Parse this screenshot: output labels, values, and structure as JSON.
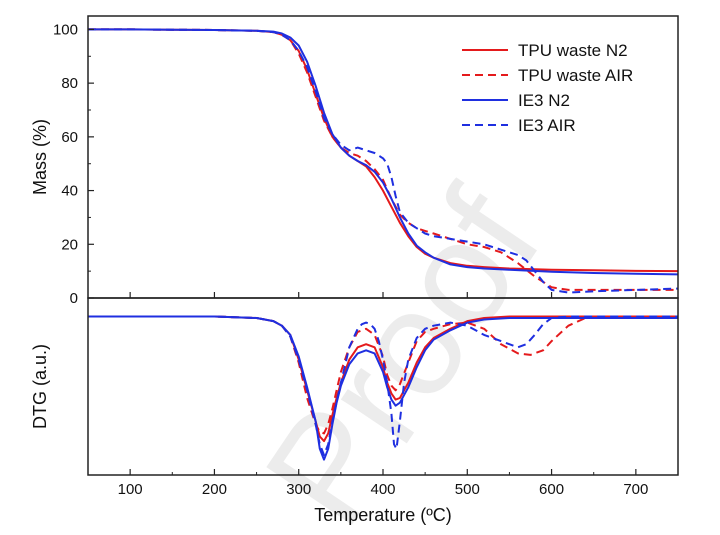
{
  "watermark": "Proof",
  "colors": {
    "tpu": "#e41a1c",
    "ie3": "#1f2fe0"
  },
  "chart_data": [
    {
      "type": "line",
      "panel": "mass",
      "ylabel": "Mass (%)",
      "xlim": [
        50,
        750
      ],
      "ylim": [
        0,
        105
      ],
      "yticks": [
        0,
        20,
        40,
        60,
        80,
        100
      ],
      "legend": "top-right",
      "series": [
        {
          "name": "TPU waste N2",
          "color": "#e41a1c",
          "dash": "solid",
          "x": [
            50,
            100,
            150,
            200,
            250,
            270,
            280,
            290,
            300,
            310,
            320,
            330,
            340,
            350,
            360,
            370,
            380,
            390,
            400,
            410,
            420,
            430,
            440,
            450,
            460,
            480,
            500,
            520,
            550,
            600,
            650,
            700,
            750
          ],
          "y": [
            100,
            100,
            99.9,
            99.8,
            99.5,
            99,
            98,
            96,
            92,
            85,
            76,
            67,
            60,
            56,
            53,
            51,
            49,
            45,
            40,
            34,
            28,
            23,
            19,
            16.5,
            15,
            13,
            12,
            11.5,
            11,
            10.5,
            10.3,
            10.1,
            10
          ]
        },
        {
          "name": "TPU waste AIR",
          "color": "#e41a1c",
          "dash": "dashed",
          "x": [
            50,
            100,
            150,
            200,
            250,
            270,
            280,
            290,
            300,
            310,
            320,
            330,
            340,
            350,
            360,
            370,
            380,
            390,
            400,
            410,
            420,
            430,
            440,
            450,
            460,
            480,
            500,
            520,
            540,
            560,
            580,
            600,
            620,
            630,
            650,
            700,
            750
          ],
          "y": [
            100,
            100,
            99.9,
            99.8,
            99.5,
            99,
            98,
            96,
            91,
            84,
            75,
            66,
            60,
            56,
            54,
            53,
            51,
            48,
            44,
            37,
            31,
            28,
            26,
            25,
            24,
            22,
            20,
            19,
            17,
            13,
            8,
            4,
            3,
            3,
            3,
            3,
            3
          ]
        },
        {
          "name": "IE3 N2",
          "color": "#1f2fe0",
          "dash": "solid",
          "x": [
            50,
            100,
            150,
            200,
            250,
            270,
            280,
            290,
            300,
            310,
            320,
            330,
            340,
            350,
            360,
            370,
            380,
            390,
            400,
            410,
            420,
            430,
            440,
            450,
            460,
            480,
            500,
            520,
            550,
            600,
            650,
            700,
            750
          ],
          "y": [
            100,
            100,
            99.9,
            99.8,
            99.5,
            99.2,
            98.5,
            97,
            94,
            88,
            79,
            69,
            61,
            56,
            53,
            51,
            49.5,
            47,
            43,
            37,
            30,
            24,
            19.5,
            17,
            15,
            12.5,
            11.5,
            11,
            10.5,
            9.8,
            9.3,
            9,
            8.8
          ]
        },
        {
          "name": "IE3 AIR",
          "color": "#1f2fe0",
          "dash": "dashed",
          "x": [
            50,
            100,
            150,
            200,
            250,
            270,
            280,
            290,
            300,
            310,
            320,
            330,
            340,
            350,
            360,
            370,
            380,
            390,
            400,
            405,
            410,
            415,
            420,
            430,
            440,
            450,
            460,
            480,
            500,
            520,
            540,
            560,
            570,
            580,
            590,
            600,
            620,
            650,
            700,
            750
          ],
          "y": [
            100,
            100,
            99.9,
            99.8,
            99.5,
            99,
            98,
            96,
            92,
            86,
            77,
            67,
            61,
            57,
            55,
            56,
            55,
            54,
            52,
            50,
            45,
            38,
            32,
            28,
            26,
            24,
            23,
            22,
            21,
            20,
            18,
            16,
            14,
            10,
            6,
            3,
            2,
            2.5,
            3,
            3.5
          ]
        }
      ]
    },
    {
      "type": "line",
      "panel": "dtg",
      "xlabel": "Temperature (ºC)",
      "ylabel": "DTG (a.u.)",
      "xlim": [
        50,
        750
      ],
      "xticks": [
        100,
        200,
        300,
        400,
        500,
        600,
        700
      ],
      "ylim": [
        -1.05,
        0.1
      ],
      "series": [
        {
          "name": "TPU waste N2",
          "color": "#e41a1c",
          "dash": "solid",
          "x": [
            50,
            100,
            200,
            250,
            270,
            280,
            290,
            300,
            310,
            320,
            325,
            330,
            335,
            340,
            345,
            350,
            360,
            370,
            380,
            390,
            400,
            405,
            410,
            415,
            420,
            430,
            440,
            450,
            460,
            480,
            500,
            520,
            550,
            600,
            650,
            700,
            750
          ],
          "y": [
            -0.02,
            -0.02,
            -0.02,
            -0.03,
            -0.05,
            -0.08,
            -0.14,
            -0.3,
            -0.5,
            -0.7,
            -0.8,
            -0.83,
            -0.78,
            -0.66,
            -0.55,
            -0.45,
            -0.3,
            -0.22,
            -0.2,
            -0.22,
            -0.35,
            -0.45,
            -0.52,
            -0.56,
            -0.55,
            -0.45,
            -0.32,
            -0.22,
            -0.16,
            -0.1,
            -0.05,
            -0.03,
            -0.02,
            -0.02,
            -0.02,
            -0.02,
            -0.02
          ]
        },
        {
          "name": "TPU waste AIR",
          "color": "#e41a1c",
          "dash": "dashed",
          "x": [
            50,
            100,
            200,
            250,
            270,
            280,
            290,
            300,
            310,
            320,
            325,
            330,
            335,
            340,
            345,
            350,
            360,
            370,
            380,
            390,
            400,
            405,
            410,
            415,
            420,
            430,
            440,
            450,
            460,
            480,
            500,
            520,
            540,
            560,
            575,
            590,
            600,
            620,
            640,
            650,
            700,
            750
          ],
          "y": [
            -0.02,
            -0.02,
            -0.02,
            -0.03,
            -0.05,
            -0.08,
            -0.15,
            -0.32,
            -0.55,
            -0.72,
            -0.77,
            -0.78,
            -0.72,
            -0.62,
            -0.5,
            -0.38,
            -0.22,
            -0.12,
            -0.1,
            -0.14,
            -0.28,
            -0.4,
            -0.47,
            -0.5,
            -0.46,
            -0.32,
            -0.18,
            -0.12,
            -0.1,
            -0.07,
            -0.06,
            -0.1,
            -0.2,
            -0.26,
            -0.27,
            -0.24,
            -0.18,
            -0.08,
            -0.03,
            -0.02,
            -0.02,
            -0.02
          ]
        },
        {
          "name": "IE3 N2",
          "color": "#1f2fe0",
          "dash": "solid",
          "x": [
            50,
            100,
            200,
            250,
            270,
            280,
            290,
            300,
            310,
            320,
            325,
            330,
            335,
            340,
            345,
            350,
            360,
            370,
            380,
            390,
            400,
            405,
            410,
            415,
            420,
            430,
            440,
            450,
            460,
            480,
            500,
            520,
            550,
            600,
            650,
            700,
            750
          ],
          "y": [
            -0.02,
            -0.02,
            -0.02,
            -0.03,
            -0.05,
            -0.08,
            -0.14,
            -0.28,
            -0.48,
            -0.7,
            -0.88,
            -0.95,
            -0.88,
            -0.72,
            -0.58,
            -0.47,
            -0.33,
            -0.26,
            -0.24,
            -0.26,
            -0.38,
            -0.48,
            -0.56,
            -0.6,
            -0.58,
            -0.48,
            -0.35,
            -0.24,
            -0.17,
            -0.11,
            -0.06,
            -0.04,
            -0.03,
            -0.03,
            -0.03,
            -0.03,
            -0.03
          ]
        },
        {
          "name": "IE3 AIR",
          "color": "#1f2fe0",
          "dash": "dashed",
          "x": [
            50,
            100,
            200,
            250,
            270,
            280,
            290,
            300,
            310,
            320,
            325,
            330,
            335,
            340,
            350,
            360,
            370,
            375,
            380,
            385,
            390,
            395,
            400,
            405,
            410,
            413,
            416,
            420,
            425,
            430,
            440,
            450,
            460,
            480,
            500,
            520,
            540,
            560,
            570,
            580,
            590,
            600,
            620,
            640,
            650,
            700,
            750
          ],
          "y": [
            -0.02,
            -0.02,
            -0.02,
            -0.03,
            -0.05,
            -0.08,
            -0.15,
            -0.3,
            -0.5,
            -0.72,
            -0.85,
            -0.92,
            -0.85,
            -0.7,
            -0.45,
            -0.22,
            -0.1,
            -0.07,
            -0.06,
            -0.07,
            -0.1,
            -0.18,
            -0.3,
            -0.45,
            -0.65,
            -0.85,
            -0.88,
            -0.7,
            -0.45,
            -0.3,
            -0.16,
            -0.1,
            -0.08,
            -0.06,
            -0.08,
            -0.14,
            -0.18,
            -0.22,
            -0.2,
            -0.14,
            -0.07,
            -0.03,
            -0.02,
            -0.02,
            -0.02,
            -0.02,
            -0.02
          ]
        }
      ]
    }
  ]
}
